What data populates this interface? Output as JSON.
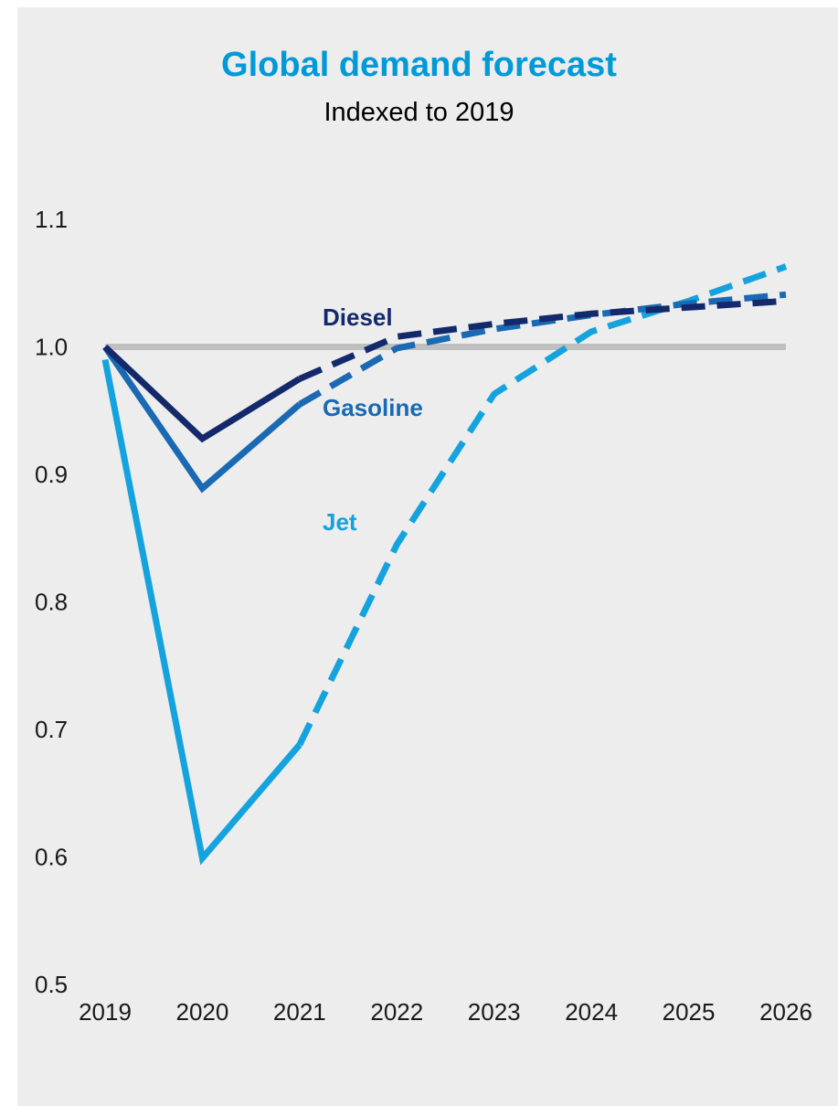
{
  "chart_data": {
    "type": "line",
    "title": "Global demand forecast",
    "subtitle": "Indexed to 2019",
    "xlabel": "",
    "ylabel": "",
    "x": [
      "2019",
      "2020",
      "2021",
      "2022",
      "2023",
      "2024",
      "2025",
      "2026"
    ],
    "ylim": [
      0.5,
      1.1
    ],
    "yticks": [
      "0.5",
      "0.6",
      "0.7",
      "0.8",
      "0.9",
      "1.0",
      "1.1"
    ],
    "reference_line": 1.0,
    "grid": false,
    "legend": "inline labels",
    "forecast_starts_after": "2021",
    "series": [
      {
        "name": "Diesel",
        "color": "#13296b",
        "values": [
          1.0,
          0.928,
          0.975,
          1.008,
          1.018,
          1.026,
          1.031,
          1.036
        ]
      },
      {
        "name": "Gasoline",
        "color": "#1a69b3",
        "values": [
          1.0,
          0.889,
          0.955,
          0.999,
          1.014,
          1.025,
          1.034,
          1.041
        ]
      },
      {
        "name": "Jet",
        "color": "#14a3de",
        "values": [
          0.99,
          0.599,
          0.688,
          0.845,
          0.963,
          1.012,
          1.036,
          1.063
        ]
      }
    ]
  }
}
